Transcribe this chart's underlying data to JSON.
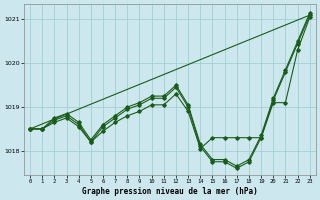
{
  "title": "Graphe pression niveau de la mer (hPa)",
  "bg_color": "#cce8ee",
  "line_color": "#1a5c1a",
  "grid_color": "#99cccc",
  "xlim": [
    -0.5,
    23.5
  ],
  "ylim": [
    1017.45,
    1021.35
  ],
  "yticks": [
    1018,
    1019,
    1020,
    1021
  ],
  "xticks": [
    0,
    1,
    2,
    3,
    4,
    5,
    6,
    7,
    8,
    9,
    10,
    11,
    12,
    13,
    14,
    15,
    16,
    17,
    18,
    19,
    20,
    21,
    22,
    23
  ],
  "straight_line": {
    "x": [
      0,
      23
    ],
    "y": [
      1018.5,
      1021.1
    ]
  },
  "line_A": {
    "x": [
      0,
      1,
      2,
      3,
      4,
      5,
      6,
      7,
      8,
      9,
      10,
      11,
      12,
      13,
      14,
      15,
      16,
      17,
      18,
      19,
      20,
      21,
      22,
      23
    ],
    "y": [
      1018.5,
      1018.5,
      1018.7,
      1018.8,
      1018.6,
      1018.2,
      1018.55,
      1018.75,
      1018.95,
      1019.05,
      1019.2,
      1019.2,
      1019.45,
      1019.0,
      1018.1,
      1017.75,
      1017.75,
      1017.6,
      1017.75,
      1018.3,
      1019.15,
      1019.8,
      1020.45,
      1021.1
    ]
  },
  "line_B": {
    "x": [
      0,
      1,
      2,
      3,
      4,
      5,
      6,
      7,
      8,
      9,
      10,
      11,
      12,
      13,
      14,
      15,
      16,
      17,
      18,
      19,
      20,
      21,
      22,
      23
    ],
    "y": [
      1018.5,
      1018.5,
      1018.75,
      1018.85,
      1018.65,
      1018.25,
      1018.6,
      1018.8,
      1019.0,
      1019.1,
      1019.25,
      1019.25,
      1019.5,
      1019.05,
      1018.15,
      1017.8,
      1017.8,
      1017.65,
      1017.8,
      1018.35,
      1019.2,
      1019.85,
      1020.5,
      1021.15
    ]
  },
  "line_C": {
    "x": [
      0,
      1,
      2,
      3,
      4,
      5,
      6,
      7,
      8,
      9,
      10,
      11,
      12,
      13,
      14,
      15,
      16,
      17,
      18,
      19,
      20,
      21,
      22,
      23
    ],
    "y": [
      1018.5,
      1018.5,
      1018.65,
      1018.75,
      1018.55,
      1018.2,
      1018.45,
      1018.65,
      1018.8,
      1018.9,
      1019.05,
      1019.05,
      1019.3,
      1018.9,
      1018.05,
      1018.3,
      1018.3,
      1018.3,
      1018.3,
      1018.3,
      1019.1,
      1019.1,
      1020.3,
      1021.05
    ]
  }
}
